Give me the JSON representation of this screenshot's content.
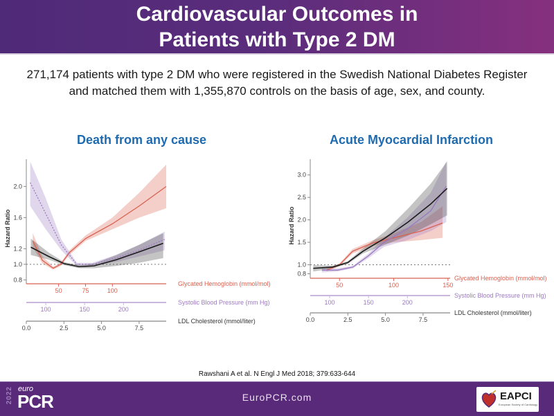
{
  "slide": {
    "title_line1": "Cardiovascular Outcomes in",
    "title_line2": "Patients with Type 2 DM",
    "subtitle_line1": "271,174 patients with type 2 DM who were registered in the Swedish National Diabetes Register",
    "subtitle_line2": "and matched them with 1,355,870 controls on the basis of age, sex, and county.",
    "citation": "Rawshani A et al. N Engl J Med 2018; 379:633-644",
    "footer_url": "EuroPCR.com",
    "logo_left": {
      "year": "2022",
      "euro": "euro",
      "pcr": "PCR"
    },
    "logo_right": {
      "name": "EAPCI",
      "sub": "European Society of Cardiology"
    }
  },
  "colors": {
    "hba1c": "#d9604f",
    "sbp": "#9b79c0",
    "ldl": "#1a1a1a",
    "title_blue": "#1f6bb0",
    "header_purple": "#5b2d7c"
  },
  "chart_data": [
    {
      "type": "line",
      "title": "Death from any cause",
      "ylabel": "Hazard Ratio",
      "yticks": [
        0.8,
        1.0,
        1.2,
        1.6,
        2.0
      ],
      "ylim": [
        0.75,
        2.35
      ],
      "reference_line": 1.0,
      "x_axes": [
        {
          "name": "Glycated Hemoglobin (mmol/mol)",
          "key": "hba1c",
          "ticks": [
            50,
            75,
            100
          ],
          "range": [
            20,
            150
          ]
        },
        {
          "name": "Systolic Blood Pressure (mm Hg)",
          "key": "sbp",
          "ticks": [
            100,
            150,
            200
          ],
          "range": [
            75,
            255
          ]
        },
        {
          "name": "LDL Cholesterol (mmol/liter)",
          "key": "ldl",
          "ticks": [
            0.0,
            2.5,
            5.0,
            7.5
          ],
          "tick_labels": [
            "0.0",
            "2.5",
            "5.0",
            "7.5"
          ],
          "range": [
            0,
            9.3
          ]
        }
      ],
      "series": [
        {
          "name": "Glycated Hemoglobin",
          "key": "hba1c",
          "dashed": false,
          "x": [
            26,
            35,
            45,
            52,
            60,
            75,
            100,
            125,
            150
          ],
          "y": [
            1.3,
            1.05,
            0.95,
            1.0,
            1.15,
            1.33,
            1.52,
            1.75,
            2.0
          ],
          "lo": [
            1.22,
            1.01,
            0.93,
            0.98,
            1.12,
            1.3,
            1.45,
            1.6,
            1.72
          ],
          "hi": [
            1.4,
            1.1,
            0.97,
            1.02,
            1.18,
            1.37,
            1.6,
            1.92,
            2.28
          ]
        },
        {
          "name": "Systolic Blood Pressure",
          "key": "sbp",
          "dashed": true,
          "x": [
            80,
            100,
            120,
            140,
            160,
            190,
            220,
            253
          ],
          "y": [
            2.05,
            1.65,
            1.25,
            1.0,
            1.0,
            1.08,
            1.18,
            1.32
          ],
          "lo": [
            1.75,
            1.45,
            1.18,
            0.98,
            0.98,
            1.03,
            1.1,
            1.18
          ],
          "hi": [
            2.32,
            1.85,
            1.32,
            1.02,
            1.02,
            1.12,
            1.25,
            1.42
          ]
        },
        {
          "name": "LDL Cholesterol",
          "key": "ldl",
          "dashed": false,
          "x": [
            0.3,
            1.5,
            2.5,
            3.5,
            4.5,
            6.0,
            7.5,
            9.1
          ],
          "y": [
            1.22,
            1.1,
            1.01,
            0.97,
            0.98,
            1.06,
            1.16,
            1.27
          ],
          "lo": [
            1.12,
            1.06,
            0.99,
            0.95,
            0.95,
            0.98,
            1.02,
            1.08
          ],
          "hi": [
            1.33,
            1.15,
            1.03,
            0.99,
            1.01,
            1.12,
            1.25,
            1.4
          ]
        }
      ]
    },
    {
      "type": "line",
      "title": "Acute Myocardial Infarction",
      "ylabel": "Hazard Ratio",
      "yticks": [
        0.8,
        1.0,
        1.5,
        2.0,
        2.5,
        3.0
      ],
      "ylim": [
        0.7,
        3.35
      ],
      "reference_line": 1.0,
      "x_axes": [
        {
          "name": "Glycated Hemoglobin (mmol/mol)",
          "key": "hba1c",
          "ticks": [
            50,
            100,
            150
          ],
          "range": [
            23,
            152
          ]
        },
        {
          "name": "Systolic Blood Pressure (mm Hg)",
          "key": "sbp",
          "ticks": [
            100,
            150,
            200
          ],
          "range": [
            75,
            255
          ]
        },
        {
          "name": "LDL Cholesterol (mmol/liter)",
          "key": "ldl",
          "ticks": [
            0.0,
            2.5,
            5.0,
            7.5
          ],
          "tick_labels": [
            "0.0",
            "2.5",
            "5.0",
            "7.5"
          ],
          "range": [
            0,
            9.3
          ]
        }
      ],
      "series": [
        {
          "name": "Glycated Hemoglobin",
          "key": "hba1c",
          "dashed": false,
          "x": [
            38,
            50,
            62,
            80,
            100,
            125,
            145
          ],
          "y": [
            0.88,
            1.0,
            1.3,
            1.48,
            1.6,
            1.75,
            1.93
          ],
          "lo": [
            0.85,
            0.97,
            1.25,
            1.42,
            1.5,
            1.55,
            1.6
          ],
          "hi": [
            0.92,
            1.03,
            1.35,
            1.54,
            1.7,
            1.95,
            2.3
          ]
        },
        {
          "name": "Systolic Blood Pressure",
          "key": "sbp",
          "dashed": false,
          "x": [
            90,
            110,
            130,
            150,
            170,
            200,
            230,
            250
          ],
          "y": [
            0.88,
            0.88,
            0.95,
            1.2,
            1.5,
            1.8,
            2.2,
            2.75
          ],
          "lo": [
            0.83,
            0.85,
            0.92,
            1.15,
            1.4,
            1.55,
            1.75,
            1.95
          ],
          "hi": [
            0.93,
            0.92,
            0.98,
            1.25,
            1.6,
            2.05,
            2.6,
            3.3
          ]
        },
        {
          "name": "LDL Cholesterol",
          "key": "ldl",
          "dashed": false,
          "x": [
            0.2,
            1.5,
            2.5,
            3.5,
            5.0,
            6.5,
            8.0,
            9.1
          ],
          "y": [
            0.92,
            0.95,
            1.05,
            1.3,
            1.6,
            1.95,
            2.35,
            2.7
          ],
          "lo": [
            0.85,
            0.92,
            1.02,
            1.25,
            1.45,
            1.65,
            1.9,
            2.1
          ],
          "hi": [
            0.99,
            0.98,
            1.08,
            1.36,
            1.75,
            2.25,
            2.8,
            3.3
          ]
        }
      ]
    }
  ]
}
